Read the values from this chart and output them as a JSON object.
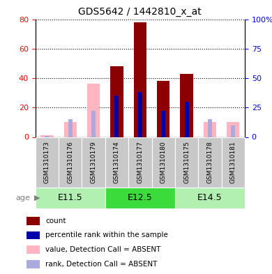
{
  "title": "GDS5642 / 1442810_x_at",
  "samples": [
    "GSM1310173",
    "GSM1310176",
    "GSM1310179",
    "GSM1310174",
    "GSM1310177",
    "GSM1310180",
    "GSM1310175",
    "GSM1310178",
    "GSM1310181"
  ],
  "groups": [
    {
      "label": "E11.5",
      "indices": [
        0,
        1,
        2
      ],
      "color": "#b2f0b2"
    },
    {
      "label": "E12.5",
      "indices": [
        3,
        4,
        5
      ],
      "color": "#3cdb3c"
    },
    {
      "label": "E14.5",
      "indices": [
        6,
        7,
        8
      ],
      "color": "#b2f0b2"
    }
  ],
  "red_values": [
    1,
    10,
    36,
    48,
    78,
    38,
    43,
    10,
    10
  ],
  "blue_values": [
    1,
    15,
    22,
    35,
    38,
    22,
    30,
    15,
    10
  ],
  "absent": [
    true,
    true,
    true,
    false,
    false,
    false,
    false,
    true,
    true
  ],
  "ylim_left": [
    0,
    80
  ],
  "ylim_right": [
    0,
    100
  ],
  "yticks_left": [
    0,
    20,
    40,
    60,
    80
  ],
  "yticks_right": [
    0,
    25,
    50,
    75,
    100
  ],
  "ytick_labels_left": [
    "0",
    "20",
    "40",
    "60",
    "80"
  ],
  "ytick_labels_right": [
    "0",
    "25",
    "50",
    "75",
    "100%"
  ],
  "red_present_color": "#8B0000",
  "red_absent_color": "#FFB6C1",
  "blue_present_color": "#0000AA",
  "blue_absent_color": "#AAAADD",
  "sample_box_color": "#C8C8C8",
  "age_label": "age",
  "legend_items": [
    {
      "color": "#8B0000",
      "label": "count"
    },
    {
      "color": "#0000AA",
      "label": "percentile rank within the sample"
    },
    {
      "color": "#FFB6C1",
      "label": "value, Detection Call = ABSENT"
    },
    {
      "color": "#AAAADD",
      "label": "rank, Detection Call = ABSENT"
    }
  ]
}
